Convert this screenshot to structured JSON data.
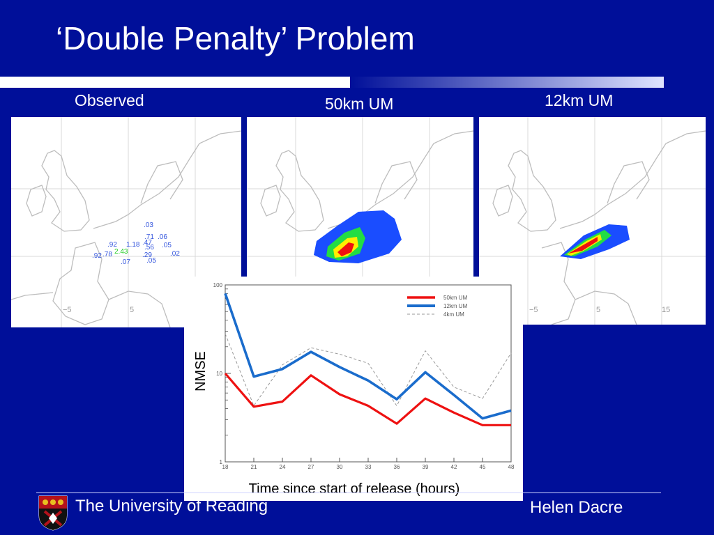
{
  "slide": {
    "title": "‘Double Penalty’ Problem",
    "footer_left": "The University of Reading",
    "footer_right": "Helen Dacre"
  },
  "panels": [
    {
      "label": "Observed",
      "kind": "observations"
    },
    {
      "label": "50km UM",
      "kind": "plume-broad"
    },
    {
      "label": "12km UM",
      "kind": "plume-narrow"
    }
  ],
  "map_labels": {
    "lon_ticks": [
      "−5",
      "5",
      "15"
    ],
    "observations": [
      ".03",
      ".71",
      ".06",
      ".92",
      "1.18",
      ".47",
      ".05",
      "2.43",
      ".56",
      ".92",
      ".78",
      ".29",
      ".02",
      ".07",
      ".05"
    ]
  },
  "colors": {
    "background": "#000f99",
    "plume_blue": "#1a4dff",
    "plume_green": "#22dd44",
    "plume_yellow": "#ffee00",
    "plume_red": "#ee1111",
    "series_50km": "#ee1111",
    "series_12km": "#1a6ccc",
    "series_4km": "#999999"
  },
  "chart_data": {
    "type": "line",
    "ylabel": "NMSE",
    "xlabel": "Time since start of release (hours)",
    "yscale": "log",
    "ylim": [
      1,
      100
    ],
    "ytick_labels": [
      "1",
      "10",
      "100"
    ],
    "x": [
      18,
      21,
      24,
      27,
      30,
      33,
      36,
      39,
      42,
      45,
      48
    ],
    "xtick_labels": [
      "18",
      "21",
      "24",
      "27",
      "30",
      "33",
      "36",
      "39",
      "42",
      "45",
      "48"
    ],
    "series": [
      {
        "name": "50km UM",
        "values": [
          10,
          4.2,
          4.8,
          9.5,
          5.8,
          4.3,
          2.7,
          5.2,
          3.6,
          2.6,
          2.6
        ]
      },
      {
        "name": "12km UM",
        "values": [
          80,
          9.2,
          11.2,
          17.5,
          11.8,
          8.3,
          5.1,
          10.3,
          5.7,
          3.1,
          3.8
        ]
      },
      {
        "name": "4km UM",
        "values": [
          28,
          4.3,
          12.5,
          19.5,
          16.5,
          13.0,
          4.3,
          18.0,
          7.0,
          5.2,
          17.0
        ]
      }
    ],
    "legend_position": "top-right",
    "grid": false
  }
}
